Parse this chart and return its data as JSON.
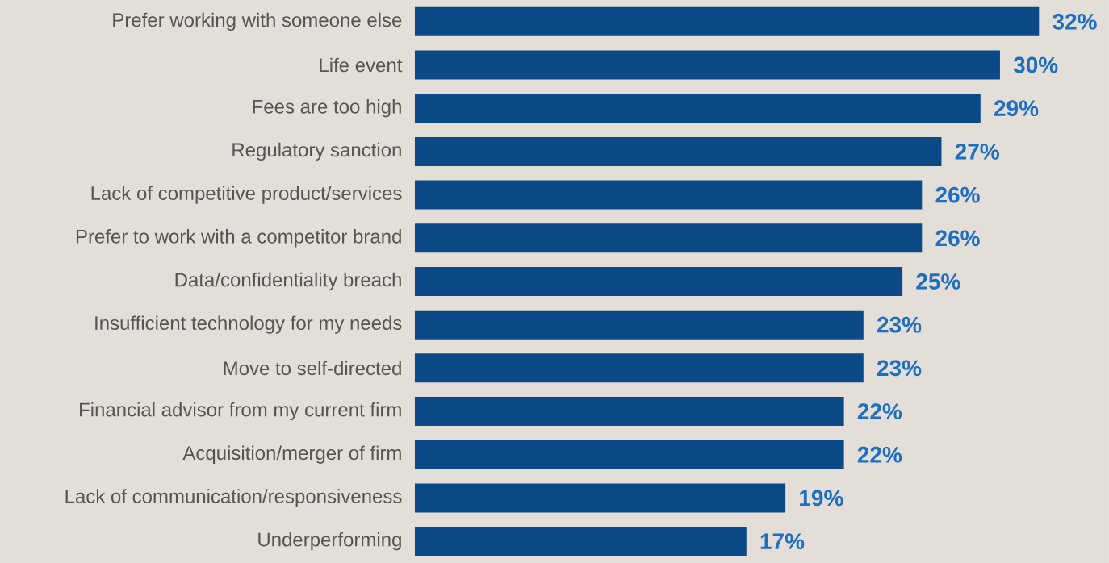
{
  "chart_data": {
    "type": "bar",
    "orientation": "horizontal",
    "color": "#0b4a86",
    "categories": [
      "Prefer working with someone else",
      "Life event",
      "Fees are too high",
      "Regulatory sanction",
      "Lack of competitive product/services",
      "Prefer to work with a competitor brand",
      "Data/confidentiality breach",
      "Insufficient technology for my needs",
      "Move to self-directed",
      "Financial advisor from my current firm",
      "Acquisition/merger of firm",
      "Lack of communication/responsiveness",
      "Underperforming"
    ],
    "values": [
      32,
      30,
      29,
      27,
      26,
      26,
      25,
      23,
      23,
      22,
      22,
      19,
      17
    ],
    "value_labels": [
      "32%",
      "30%",
      "29%",
      "27%",
      "26%",
      "26%",
      "25%",
      "23%",
      "23%",
      "22%",
      "22%",
      "19%",
      "17%"
    ]
  }
}
